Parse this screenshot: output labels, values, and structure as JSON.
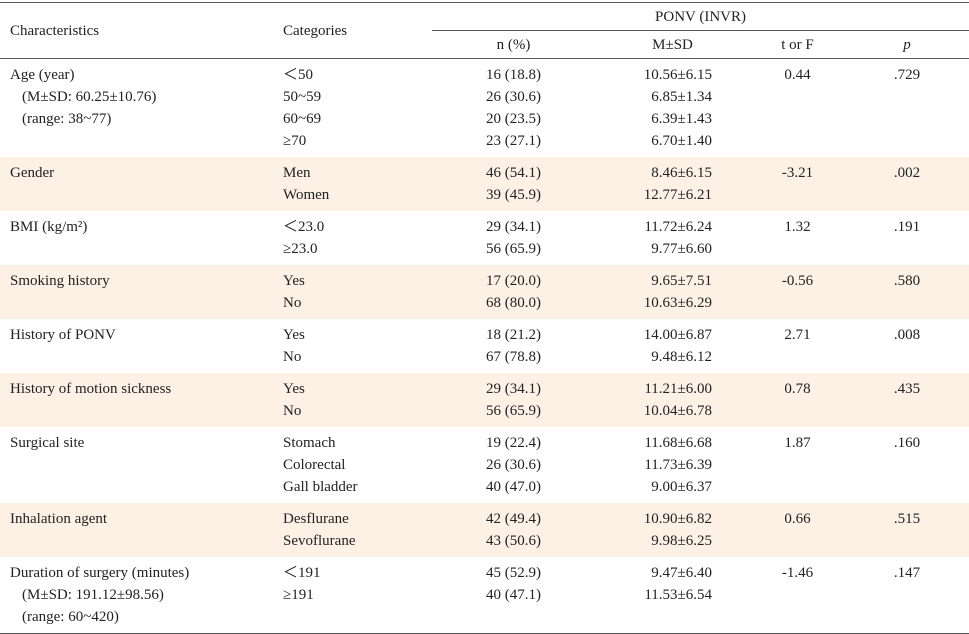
{
  "header": {
    "characteristics": "Characteristics",
    "categories": "Categories",
    "group": "PONV (INVR)",
    "columns": [
      "n (%)",
      "M±SD",
      "t or F",
      "p"
    ]
  },
  "rows": [
    {
      "characteristic": [
        "Age (year)",
        "(M±SD: 60.25±10.76)",
        "(range: 38~77)"
      ],
      "categories": [
        "＜50",
        "50~59",
        "60~69",
        "≥70"
      ],
      "n": [
        "16 (18.8)",
        "26 (30.6)",
        "20 (23.5)",
        "23 (27.1)"
      ],
      "msd": [
        "10.56±6.15",
        "6.85±1.34",
        "6.39±1.43",
        "6.70±1.40"
      ],
      "t": "0.44",
      "p": ".729"
    },
    {
      "characteristic": [
        "Gender"
      ],
      "categories": [
        "Men",
        "Women"
      ],
      "n": [
        "46 (54.1)",
        "39 (45.9)"
      ],
      "msd": [
        "8.46±6.15",
        "12.77±6.21"
      ],
      "t": "-3.21",
      "p": ".002"
    },
    {
      "characteristic": [
        "BMI (kg/m²)"
      ],
      "categories": [
        "＜23.0",
        "≥23.0"
      ],
      "n": [
        "29 (34.1)",
        "56 (65.9)"
      ],
      "msd": [
        "11.72±6.24",
        "9.77±6.60"
      ],
      "t": "1.32",
      "p": ".191"
    },
    {
      "characteristic": [
        "Smoking history"
      ],
      "categories": [
        "Yes",
        "No"
      ],
      "n": [
        "17 (20.0)",
        "68 (80.0)"
      ],
      "msd": [
        "9.65±7.51",
        "10.63±6.29"
      ],
      "t": "-0.56",
      "p": ".580"
    },
    {
      "characteristic": [
        "History of PONV"
      ],
      "categories": [
        "Yes",
        "No"
      ],
      "n": [
        "18 (21.2)",
        "67 (78.8)"
      ],
      "msd": [
        "14.00±6.87",
        "9.48±6.12"
      ],
      "t": "2.71",
      "p": ".008"
    },
    {
      "characteristic": [
        "History of motion sickness"
      ],
      "categories": [
        "Yes",
        "No"
      ],
      "n": [
        "29 (34.1)",
        "56 (65.9)"
      ],
      "msd": [
        "11.21±6.00",
        "10.04±6.78"
      ],
      "t": "0.78",
      "p": ".435"
    },
    {
      "characteristic": [
        "Surgical site"
      ],
      "categories": [
        "Stomach",
        "Colorectal",
        "Gall bladder"
      ],
      "n": [
        "19 (22.4)",
        "26 (30.6)",
        "40 (47.0)"
      ],
      "msd": [
        "11.68±6.68",
        "11.73±6.39",
        "9.00±6.37"
      ],
      "t": "1.87",
      "p": ".160"
    },
    {
      "characteristic": [
        "Inhalation agent"
      ],
      "categories": [
        "Desflurane",
        "Sevoflurane"
      ],
      "n": [
        "42 (49.4)",
        "43 (50.6)"
      ],
      "msd": [
        "10.90±6.82",
        "9.98±6.25"
      ],
      "t": "0.66",
      "p": ".515"
    },
    {
      "characteristic": [
        "Duration of surgery (minutes)",
        "(M±SD: 191.12±98.56)",
        "(range: 60~420)"
      ],
      "categories": [
        "＜191",
        "≥191"
      ],
      "n": [
        "45 (52.9)",
        "40 (47.1)"
      ],
      "msd": [
        "9.47±6.40",
        "11.53±6.54"
      ],
      "t": "-1.46",
      "p": ".147"
    }
  ]
}
